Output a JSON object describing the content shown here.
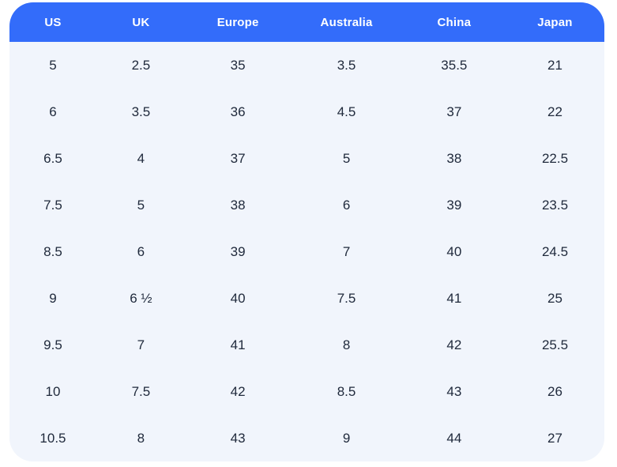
{
  "table": {
    "name": "shoe-size-conversion-chart",
    "columns": [
      "US",
      "UK",
      "Europe",
      "Australia",
      "China",
      "Japan"
    ],
    "rows": [
      [
        "5",
        "2.5",
        "35",
        "3.5",
        "35.5",
        "21"
      ],
      [
        "6",
        "3.5",
        "36",
        "4.5",
        "37",
        "22"
      ],
      [
        "6.5",
        "4",
        "37",
        "5",
        "38",
        "22.5"
      ],
      [
        "7.5",
        "5",
        "38",
        "6",
        "39",
        "23.5"
      ],
      [
        "8.5",
        "6",
        "39",
        "7",
        "40",
        "24.5"
      ],
      [
        "9",
        "6 ½",
        "40",
        "7.5",
        "41",
        "25"
      ],
      [
        "9.5",
        "7",
        "41",
        "8",
        "42",
        "25.5"
      ],
      [
        "10",
        "7.5",
        "42",
        "8.5",
        "43",
        "26"
      ],
      [
        "10.5",
        "8",
        "43",
        "9",
        "44",
        "27"
      ]
    ]
  },
  "colors": {
    "header_bg": "#336CFA",
    "header_text": "#FFFFFF",
    "body_bg": "#F1F5FC",
    "body_text": "#202A3C",
    "page_bg": "#FFFFFF"
  }
}
